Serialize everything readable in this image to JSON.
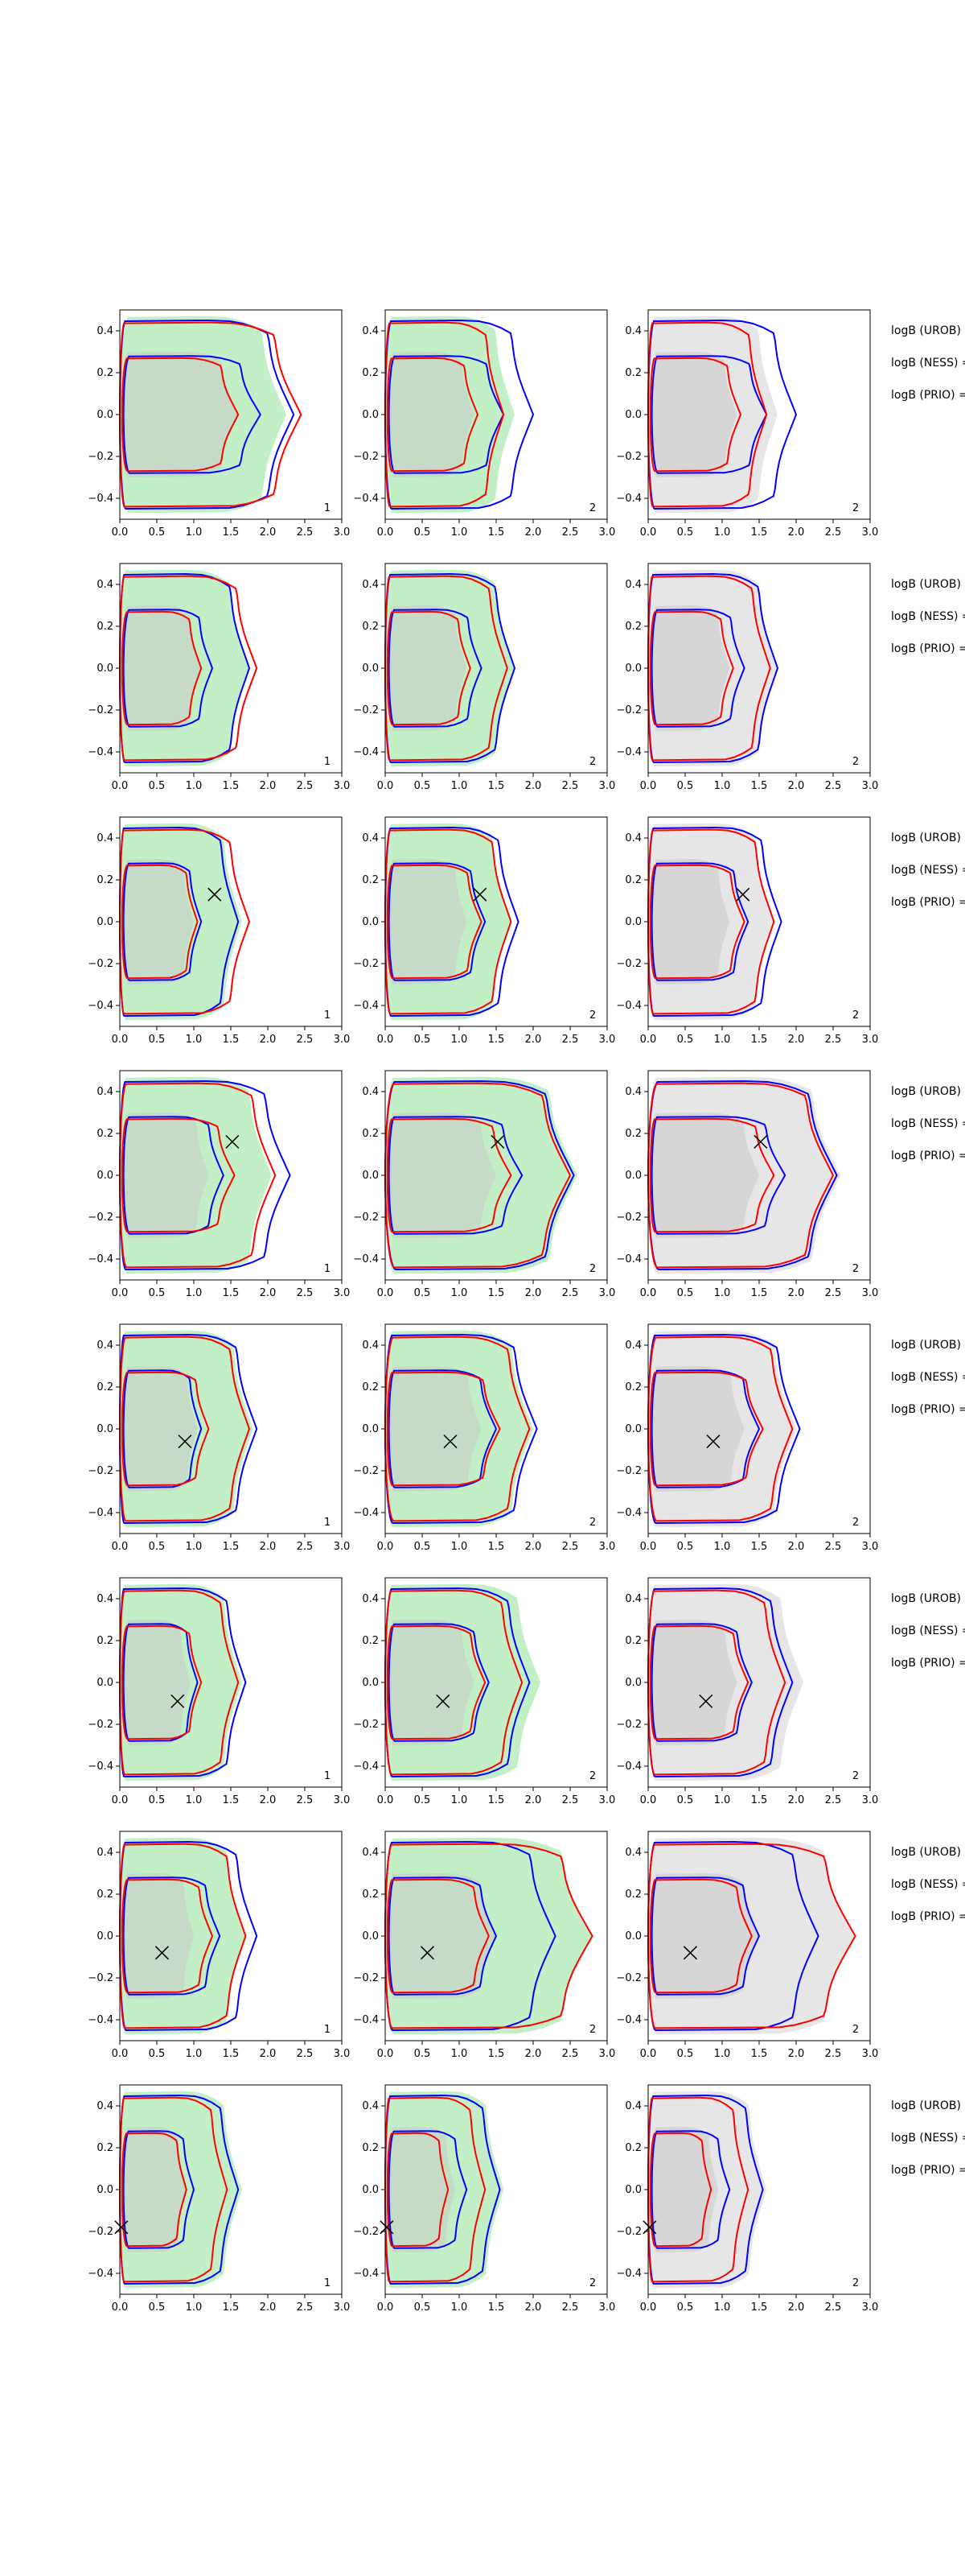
{
  "chart_data": {
    "type": "area",
    "description_rows": 8,
    "x_ticks": [
      "0.0",
      "0.5",
      "1.0",
      "1.5",
      "2.0",
      "2.5",
      "3.0"
    ],
    "y_ticks": [
      "0.4",
      "0.2",
      "0.0",
      "−0.2",
      "−0.4"
    ],
    "xlim": [
      0,
      3
    ],
    "ylim": [
      -0.5,
      0.5
    ],
    "colors": {
      "green_fill": "#c2efc6",
      "gray_fill": "#e6e6e6",
      "gray_inner": "#c8c8c8",
      "blue": "#0000ff",
      "red": "#ff0000"
    },
    "annotations": [
      "logB (UROB) =",
      "logB (NESS) =",
      "logB (PRIO) ="
    ],
    "rows": [
      {
        "marker": null,
        "panel_labels": [
          "1",
          "2",
          "2"
        ],
        "shapes": [
          {
            "b": [
              [
                0.15,
                1.0,
                2.35
              ],
              [
                0.5,
                1.9,
                2.3
              ]
            ],
            "r": [
              [
                0.15,
                0.8,
                2.45
              ],
              [
                0.45,
                1.6,
                2.4
              ]
            ],
            "fill": [
              0.2,
              1.6,
              2.25
            ]
          },
          {
            "b": [
              [
                0.15,
                1.1,
                2.0
              ],
              [
                0.5,
                1.6,
                1.9
              ]
            ],
            "r": [
              [
                0.1,
                0.8,
                1.6
              ],
              [
                0.3,
                1.25,
                1.5
              ]
            ],
            "fill": [
              0.2,
              1.2,
              1.75
            ]
          },
          {
            "b": [
              [
                0.15,
                1.1,
                2.0
              ],
              [
                0.5,
                1.6,
                1.9
              ]
            ],
            "r": [
              [
                0.1,
                0.8,
                1.6
              ],
              [
                0.3,
                1.25,
                1.5
              ]
            ],
            "fill": [
              0.2,
              1.2,
              1.75
            ]
          }
        ]
      },
      {
        "marker": null,
        "panel_labels": [
          "1",
          "2",
          "2"
        ],
        "shapes": [
          {
            "b": [
              [
                0.2,
                0.85,
                1.75
              ],
              [
                0.5,
                1.25,
                1.7
              ]
            ],
            "r": [
              [
                0.15,
                0.8,
                1.85
              ],
              [
                0.45,
                1.1,
                1.8
              ]
            ],
            "fill": [
              0.2,
              1.1,
              1.75
            ]
          },
          {
            "b": [
              [
                0.15,
                0.95,
                1.75
              ],
              [
                0.45,
                1.3,
                1.7
              ]
            ],
            "r": [
              [
                0.15,
                0.75,
                1.65
              ],
              [
                0.4,
                1.15,
                1.6
              ]
            ],
            "fill": [
              0.2,
              1.1,
              1.75
            ]
          },
          {
            "b": [
              [
                0.15,
                0.95,
                1.75
              ],
              [
                0.45,
                1.3,
                1.7
              ]
            ],
            "r": [
              [
                0.15,
                0.75,
                1.65
              ],
              [
                0.4,
                1.15,
                1.6
              ]
            ],
            "fill": [
              0.2,
              1.1,
              1.75
            ]
          }
        ]
      },
      {
        "marker": [
          1.28,
          0.13
        ],
        "panel_labels": [
          "1",
          "2",
          "2"
        ],
        "shapes": [
          {
            "b": [
              [
                0.2,
                0.75,
                1.6
              ],
              [
                0.45,
                1.1,
                1.55
              ]
            ],
            "r": [
              [
                0.15,
                0.7,
                1.75
              ],
              [
                0.45,
                1.05,
                1.7
              ]
            ],
            "fill": [
              0.2,
              1.0,
              1.65
            ]
          },
          {
            "b": [
              [
                0.15,
                1.0,
                1.8
              ],
              [
                0.45,
                1.35,
                1.75
              ]
            ],
            "r": [
              [
                0.15,
                0.85,
                1.7
              ],
              [
                0.4,
                1.3,
                1.65
              ]
            ],
            "fill": [
              0.2,
              1.1,
              1.7
            ]
          },
          {
            "b": [
              [
                0.15,
                1.0,
                1.8
              ],
              [
                0.45,
                1.35,
                1.75
              ]
            ],
            "r": [
              [
                0.15,
                0.85,
                1.7
              ],
              [
                0.4,
                1.3,
                1.65
              ]
            ],
            "fill": [
              0.2,
              1.1,
              1.7
            ]
          }
        ]
      },
      {
        "marker": [
          1.52,
          0.16
        ],
        "panel_labels": [
          "1",
          "2",
          "2"
        ],
        "shapes": [
          {
            "b": [
              [
                0.2,
                1.0,
                2.3
              ],
              [
                0.5,
                1.4,
                2.25
              ]
            ],
            "r": [
              [
                0.15,
                1.15,
                2.1
              ],
              [
                0.45,
                1.55,
                2.05
              ]
            ],
            "fill": [
              0.2,
              1.2,
              2.05
            ]
          },
          {
            "b": [
              [
                0.2,
                1.8,
                2.55
              ],
              [
                0.45,
                1.85,
                2.5
              ]
            ],
            "r": [
              [
                0.1,
                1.55,
                2.5
              ],
              [
                0.35,
                1.7,
                2.45
              ]
            ],
            "fill": [
              0.2,
              1.5,
              2.6
            ]
          },
          {
            "b": [
              [
                0.2,
                1.8,
                2.55
              ],
              [
                0.45,
                1.85,
                2.5
              ]
            ],
            "r": [
              [
                0.1,
                1.55,
                2.5
              ],
              [
                0.35,
                1.7,
                2.45
              ]
            ],
            "fill": [
              0.2,
              1.5,
              2.6
            ]
          }
        ]
      },
      {
        "marker": [
          0.88,
          -0.06
        ],
        "panel_labels": [
          "1",
          "2",
          "2"
        ],
        "shapes": [
          {
            "b": [
              [
                0.15,
                0.75,
                1.85
              ],
              [
                0.45,
                1.1,
                1.8
              ]
            ],
            "r": [
              [
                0.15,
                1.0,
                1.75
              ],
              [
                0.45,
                1.2,
                1.7
              ]
            ],
            "fill": [
              0.2,
              1.05,
              1.8
            ]
          },
          {
            "b": [
              [
                0.15,
                1.3,
                2.05
              ],
              [
                0.45,
                1.5,
                2.0
              ]
            ],
            "r": [
              [
                0.15,
                1.45,
                1.95
              ],
              [
                0.4,
                1.55,
                1.9
              ]
            ],
            "fill": [
              0.2,
              1.3,
              2.0
            ]
          },
          {
            "b": [
              [
                0.15,
                1.3,
                2.05
              ],
              [
                0.45,
                1.5,
                2.0
              ]
            ],
            "r": [
              [
                0.15,
                1.45,
                1.95
              ],
              [
                0.4,
                1.55,
                1.9
              ]
            ],
            "fill": [
              0.2,
              1.3,
              2.0
            ]
          }
        ]
      },
      {
        "marker": [
          0.78,
          -0.09
        ],
        "panel_labels": [
          "1",
          "2",
          "2"
        ],
        "shapes": [
          {
            "b": [
              [
                0.15,
                0.75,
                1.7
              ],
              [
                0.45,
                1.05,
                1.65
              ]
            ],
            "r": [
              [
                0.15,
                0.85,
                1.6
              ],
              [
                0.45,
                1.1,
                1.55
              ]
            ],
            "fill": [
              0.2,
              0.95,
              1.65
            ]
          },
          {
            "b": [
              [
                0.15,
                1.2,
                1.95
              ],
              [
                0.45,
                1.4,
                1.9
              ]
            ],
            "r": [
              [
                0.15,
                1.1,
                1.85
              ],
              [
                0.4,
                1.35,
                1.8
              ]
            ],
            "fill": [
              0.2,
              1.2,
              2.1
            ]
          },
          {
            "b": [
              [
                0.15,
                1.2,
                1.95
              ],
              [
                0.45,
                1.4,
                1.9
              ]
            ],
            "r": [
              [
                0.15,
                1.1,
                1.85
              ],
              [
                0.4,
                1.35,
                1.8
              ]
            ],
            "fill": [
              0.2,
              1.2,
              2.1
            ]
          }
        ]
      },
      {
        "marker": [
          0.57,
          -0.08
        ],
        "panel_labels": [
          "1",
          "2",
          "2"
        ],
        "shapes": [
          {
            "b": [
              [
                0.15,
                1.05,
                1.85
              ],
              [
                0.45,
                1.35,
                1.8
              ]
            ],
            "r": [
              [
                0.15,
                0.85,
                1.7
              ],
              [
                0.45,
                1.25,
                1.65
              ]
            ],
            "fill": [
              0.2,
              1.0,
              1.7
            ]
          },
          {
            "b": [
              [
                0.15,
                1.25,
                2.3
              ],
              [
                0.45,
                1.5,
                2.25
              ]
            ],
            "r": [
              [
                0.15,
                1.2,
                2.8
              ],
              [
                0.4,
                1.4,
                2.75
              ]
            ],
            "fill": [
              0.2,
              1.5,
              2.8
            ]
          },
          {
            "b": [
              [
                0.15,
                1.25,
                2.3
              ],
              [
                0.45,
                1.5,
                2.25
              ]
            ],
            "r": [
              [
                0.15,
                1.2,
                2.8
              ],
              [
                0.4,
                1.4,
                2.75
              ]
            ],
            "fill": [
              0.2,
              1.5,
              2.8
            ]
          }
        ]
      },
      {
        "marker": [
          0.02,
          -0.18
        ],
        "panel_labels": [
          "1",
          "2",
          "2"
        ],
        "shapes": [
          {
            "b": [
              [
                0.1,
                0.85,
                1.6
              ],
              [
                0.4,
                1.0,
                1.55
              ]
            ],
            "r": [
              [
                0.1,
                0.75,
                1.45
              ],
              [
                0.35,
                0.9,
                1.4
              ]
            ],
            "fill": [
              0.15,
              0.9,
              1.65
            ]
          },
          {
            "b": [
              [
                0.1,
                0.95,
                1.55
              ],
              [
                0.4,
                1.1,
                1.5
              ]
            ],
            "r": [
              [
                0.1,
                0.7,
                1.35
              ],
              [
                0.35,
                0.85,
                1.3
              ]
            ],
            "fill": [
              0.15,
              0.95,
              1.6
            ]
          },
          {
            "b": [
              [
                0.1,
                0.95,
                1.55
              ],
              [
                0.4,
                1.1,
                1.5
              ]
            ],
            "r": [
              [
                0.1,
                0.7,
                1.35
              ],
              [
                0.35,
                0.85,
                1.3
              ]
            ],
            "fill": [
              0.15,
              0.95,
              1.6
            ]
          }
        ]
      }
    ]
  }
}
